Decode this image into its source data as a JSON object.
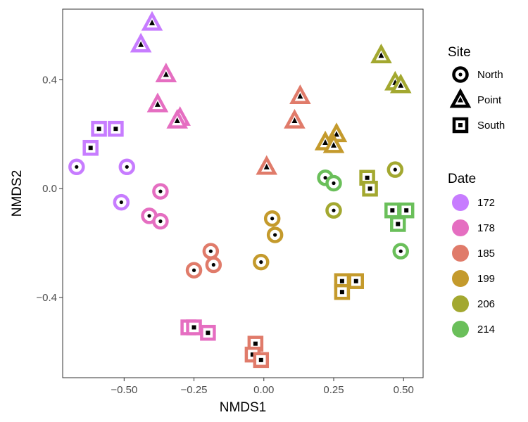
{
  "chart_data": {
    "type": "scatter",
    "xlabel": "NMDS1",
    "ylabel": "NMDS2",
    "xlim": [
      -0.72,
      0.57
    ],
    "ylim": [
      -0.695,
      0.66
    ],
    "x_ticks": [
      {
        "value": -0.5,
        "label": "−0.50"
      },
      {
        "value": -0.25,
        "label": "−0.25"
      },
      {
        "value": 0.0,
        "label": "0.00"
      },
      {
        "value": 0.25,
        "label": "0.25"
      },
      {
        "value": 0.5,
        "label": "0.50"
      }
    ],
    "y_ticks": [
      {
        "value": -0.4,
        "label": "−0.4"
      },
      {
        "value": 0.0,
        "label": "0.0"
      },
      {
        "value": 0.4,
        "label": "0.4"
      }
    ],
    "grid": false,
    "legend_position": "right",
    "legends": {
      "site": {
        "title": "Site",
        "entries": [
          {
            "key": "North",
            "label": "North",
            "shape": "circle"
          },
          {
            "key": "Point",
            "label": "Point",
            "shape": "triangle"
          },
          {
            "key": "South",
            "label": "South",
            "shape": "square"
          }
        ]
      },
      "date": {
        "title": "Date",
        "entries": [
          {
            "key": "172",
            "label": "172",
            "color": "#c77cff"
          },
          {
            "key": "178",
            "label": "178",
            "color": "#e56ec1"
          },
          {
            "key": "185",
            "label": "185",
            "color": "#e07b6a"
          },
          {
            "key": "199",
            "label": "199",
            "color": "#c49a2c"
          },
          {
            "key": "206",
            "label": "206",
            "color": "#a3a830"
          },
          {
            "key": "214",
            "label": "214",
            "color": "#6abf5a"
          }
        ]
      }
    },
    "points": [
      {
        "x": -0.4,
        "y": 0.61,
        "site": "Point",
        "date": "172"
      },
      {
        "x": -0.44,
        "y": 0.53,
        "site": "Point",
        "date": "172"
      },
      {
        "x": -0.35,
        "y": 0.42,
        "site": "Point",
        "date": "178"
      },
      {
        "x": -0.38,
        "y": 0.31,
        "site": "Point",
        "date": "178"
      },
      {
        "x": -0.3,
        "y": 0.26,
        "site": "Point",
        "date": "178"
      },
      {
        "x": -0.31,
        "y": 0.25,
        "site": "Point",
        "date": "178"
      },
      {
        "x": 0.13,
        "y": 0.34,
        "site": "Point",
        "date": "185"
      },
      {
        "x": 0.11,
        "y": 0.25,
        "site": "Point",
        "date": "185"
      },
      {
        "x": 0.01,
        "y": 0.08,
        "site": "Point",
        "date": "185"
      },
      {
        "x": 0.26,
        "y": 0.2,
        "site": "Point",
        "date": "199"
      },
      {
        "x": 0.22,
        "y": 0.17,
        "site": "Point",
        "date": "199"
      },
      {
        "x": 0.25,
        "y": 0.16,
        "site": "Point",
        "date": "199"
      },
      {
        "x": 0.42,
        "y": 0.49,
        "site": "Point",
        "date": "206"
      },
      {
        "x": 0.47,
        "y": 0.39,
        "site": "Point",
        "date": "206"
      },
      {
        "x": 0.49,
        "y": 0.38,
        "site": "Point",
        "date": "206"
      },
      {
        "x": -0.59,
        "y": 0.22,
        "site": "South",
        "date": "172"
      },
      {
        "x": -0.53,
        "y": 0.22,
        "site": "South",
        "date": "172"
      },
      {
        "x": -0.62,
        "y": 0.15,
        "site": "South",
        "date": "172"
      },
      {
        "x": -0.67,
        "y": 0.08,
        "site": "North",
        "date": "172"
      },
      {
        "x": -0.49,
        "y": 0.08,
        "site": "North",
        "date": "172"
      },
      {
        "x": -0.51,
        "y": -0.05,
        "site": "North",
        "date": "172"
      },
      {
        "x": -0.37,
        "y": -0.01,
        "site": "North",
        "date": "178"
      },
      {
        "x": -0.41,
        "y": -0.1,
        "site": "North",
        "date": "178"
      },
      {
        "x": -0.37,
        "y": -0.12,
        "site": "North",
        "date": "178"
      },
      {
        "x": -0.19,
        "y": -0.23,
        "site": "North",
        "date": "185"
      },
      {
        "x": -0.18,
        "y": -0.28,
        "site": "North",
        "date": "185"
      },
      {
        "x": -0.25,
        "y": -0.3,
        "site": "North",
        "date": "185"
      },
      {
        "x": 0.03,
        "y": -0.11,
        "site": "North",
        "date": "199"
      },
      {
        "x": 0.04,
        "y": -0.17,
        "site": "North",
        "date": "199"
      },
      {
        "x": -0.01,
        "y": -0.27,
        "site": "North",
        "date": "199"
      },
      {
        "x": 0.47,
        "y": 0.07,
        "site": "North",
        "date": "206"
      },
      {
        "x": 0.25,
        "y": -0.08,
        "site": "North",
        "date": "206"
      },
      {
        "x": 0.49,
        "y": -0.23,
        "site": "North",
        "date": "214"
      },
      {
        "x": 0.22,
        "y": 0.04,
        "site": "North",
        "date": "214"
      },
      {
        "x": 0.25,
        "y": 0.02,
        "site": "North",
        "date": "214"
      },
      {
        "x": -0.27,
        "y": -0.51,
        "site": "South",
        "date": "178"
      },
      {
        "x": -0.25,
        "y": -0.51,
        "site": "South",
        "date": "178"
      },
      {
        "x": -0.2,
        "y": -0.53,
        "site": "South",
        "date": "178"
      },
      {
        "x": -0.03,
        "y": -0.57,
        "site": "South",
        "date": "185"
      },
      {
        "x": -0.04,
        "y": -0.61,
        "site": "South",
        "date": "185"
      },
      {
        "x": -0.01,
        "y": -0.63,
        "site": "South",
        "date": "185"
      },
      {
        "x": 0.28,
        "y": -0.34,
        "site": "South",
        "date": "199"
      },
      {
        "x": 0.33,
        "y": -0.34,
        "site": "South",
        "date": "199"
      },
      {
        "x": 0.28,
        "y": -0.38,
        "site": "South",
        "date": "199"
      },
      {
        "x": 0.37,
        "y": 0.04,
        "site": "South",
        "date": "206"
      },
      {
        "x": 0.38,
        "y": 0.0,
        "site": "South",
        "date": "206"
      },
      {
        "x": 0.46,
        "y": -0.08,
        "site": "South",
        "date": "214"
      },
      {
        "x": 0.51,
        "y": -0.08,
        "site": "South",
        "date": "214"
      },
      {
        "x": 0.48,
        "y": -0.13,
        "site": "South",
        "date": "214"
      }
    ]
  }
}
